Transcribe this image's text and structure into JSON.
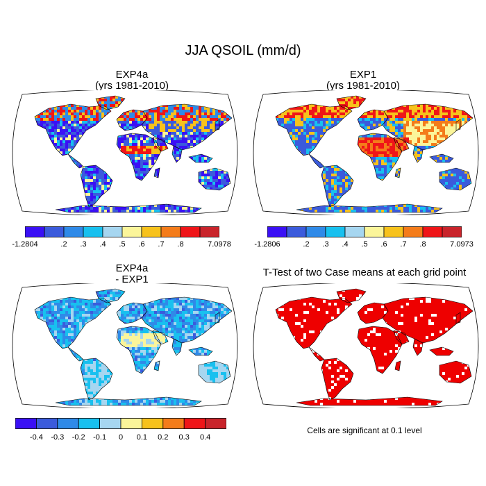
{
  "chart_data": {
    "type": "heatmap",
    "title": "JJA QSOIL (mm/d)",
    "panels": [
      {
        "id": "exp4a",
        "title": "EXP4a",
        "subtitle": "(yrs 1981-2010)",
        "colorbar": {
          "colors": [
            "#3a10f5",
            "#3b5bdc",
            "#2f8ae8",
            "#18c0ef",
            "#a6d6f0",
            "#fbf59a",
            "#f7c21c",
            "#f47c1a",
            "#ef1518",
            "#c9242b"
          ],
          "labels": [
            "-1.2804",
            ".2",
            ".3",
            ".4",
            ".5",
            ".6",
            ".7",
            ".8",
            "7.0978"
          ],
          "min": -1.2804,
          "max": 7.0978
        }
      },
      {
        "id": "exp1",
        "title": "EXP1",
        "subtitle": "(yrs 1981-2010)",
        "colorbar": {
          "colors": [
            "#3a10f5",
            "#3b5bdc",
            "#2f8ae8",
            "#18c0ef",
            "#a6d6f0",
            "#fbf59a",
            "#f7c21c",
            "#f47c1a",
            "#ef1518",
            "#c9242b"
          ],
          "labels": [
            "-1.2806",
            ".2",
            ".3",
            ".4",
            ".5",
            ".6",
            ".7",
            ".8",
            "7.0973"
          ],
          "min": -1.2806,
          "max": 7.0973
        }
      },
      {
        "id": "diff",
        "title": "EXP4a",
        "subtitle": "- EXP1",
        "colorbar": {
          "colors": [
            "#3a10f5",
            "#3b5bdc",
            "#2f8ae8",
            "#18c0ef",
            "#a6d6f0",
            "#fbf59a",
            "#f7c21c",
            "#f47c1a",
            "#ef1518",
            "#c9242b"
          ],
          "labels": [
            "-0.4",
            "-0.3",
            "-0.2",
            "-0.1",
            "0",
            "0.1",
            "0.2",
            "0.3",
            "0.4"
          ]
        }
      },
      {
        "id": "ttest",
        "title": "T-Test of two Case means at each grid point",
        "note": "Cells are significant at 0.1 level",
        "significant_color": "#ee0000"
      }
    ]
  }
}
